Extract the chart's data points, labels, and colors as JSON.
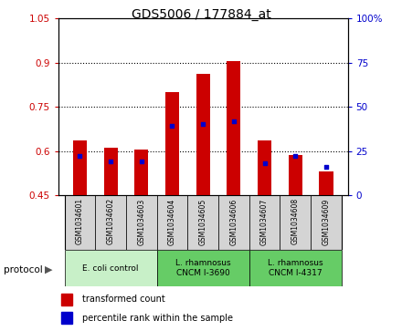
{
  "title": "GDS5006 / 177884_at",
  "samples": [
    "GSM1034601",
    "GSM1034602",
    "GSM1034603",
    "GSM1034604",
    "GSM1034605",
    "GSM1034606",
    "GSM1034607",
    "GSM1034608",
    "GSM1034609"
  ],
  "transformed_counts": [
    0.635,
    0.61,
    0.605,
    0.8,
    0.86,
    0.905,
    0.635,
    0.585,
    0.53
  ],
  "percentile_ranks": [
    22,
    19,
    19,
    39,
    40,
    42,
    18,
    22,
    16
  ],
  "bar_bottom": 0.45,
  "ylim_left": [
    0.45,
    1.05
  ],
  "ylim_right": [
    0,
    100
  ],
  "yticks_left": [
    0.45,
    0.6,
    0.75,
    0.9,
    1.05
  ],
  "yticks_right": [
    0,
    25,
    50,
    75,
    100
  ],
  "ytick_labels_left": [
    "0.45",
    "0.6",
    "0.75",
    "0.9",
    "1.05"
  ],
  "ytick_labels_right": [
    "0",
    "25",
    "50",
    "75",
    "100%"
  ],
  "left_axis_color": "#cc0000",
  "right_axis_color": "#0000cc",
  "bar_color": "#cc0000",
  "dot_color": "#0000cc",
  "group_defs": [
    {
      "start": 0,
      "end": 2,
      "label": "E. coli control",
      "color": "#c8f0c8"
    },
    {
      "start": 3,
      "end": 5,
      "label": "L. rhamnosus\nCNCM I-3690",
      "color": "#66cc66"
    },
    {
      "start": 6,
      "end": 8,
      "label": "L. rhamnosus\nCNCM I-4317",
      "color": "#66cc66"
    }
  ],
  "bar_width": 0.45
}
